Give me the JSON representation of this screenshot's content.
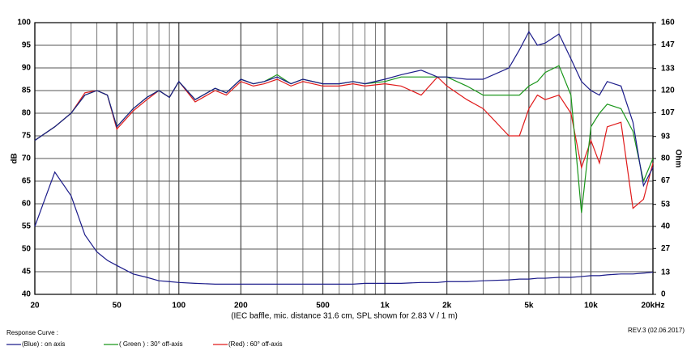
{
  "chart_data": {
    "type": "line",
    "ylabel": "dB",
    "y2label": "Ohm",
    "xlabel": "(IEC baffle, mic. distance 31.6 cm, SPL shown for 2.83 V / 1 m)",
    "revision": "REV.3 (02.06.2017)",
    "legend_title": "Response Curve :",
    "xscale": "log",
    "grid": true,
    "xlim": [
      20,
      20000
    ],
    "xticks": [
      20,
      50,
      100,
      200,
      500,
      {
        "value": 1000,
        "label": "1k"
      },
      {
        "value": 2000,
        "label": "2k"
      },
      {
        "value": 5000,
        "label": "5k"
      },
      {
        "value": 10000,
        "label": "10k"
      },
      {
        "value": 20000,
        "label": "20kHz"
      }
    ],
    "xgrid": [
      30,
      40,
      60,
      70,
      80,
      90,
      300,
      400,
      600,
      700,
      800,
      900,
      3000,
      4000,
      6000,
      7000,
      8000,
      9000
    ],
    "ylim": [
      40,
      100
    ],
    "yticks": [
      40,
      45,
      50,
      55,
      60,
      65,
      70,
      75,
      80,
      85,
      90,
      95,
      100
    ],
    "y2lim": [
      0,
      160
    ],
    "y2ticks": [
      0,
      13,
      27,
      40,
      53,
      67,
      80,
      93,
      107,
      120,
      133,
      147,
      160
    ],
    "x": [
      20,
      25,
      30,
      35,
      40,
      45,
      50,
      60,
      70,
      80,
      90,
      100,
      120,
      150,
      170,
      200,
      230,
      260,
      300,
      350,
      400,
      500,
      600,
      700,
      800,
      1000,
      1200,
      1500,
      1800,
      2000,
      2500,
      3000,
      4000,
      4500,
      5000,
      5500,
      6000,
      7000,
      8000,
      9000,
      10000,
      11000,
      12000,
      14000,
      16000,
      18000,
      20000
    ],
    "series": [
      {
        "name": "(Blue) : on axis",
        "color": "#1c1c8a",
        "values": [
          74,
          77,
          80,
          84,
          85,
          84,
          77,
          81,
          83.5,
          85,
          83.5,
          87,
          83,
          85.5,
          84.5,
          87.5,
          86.5,
          87,
          88,
          86.5,
          87.5,
          86.5,
          86.5,
          87,
          86.5,
          87.5,
          88.5,
          89.5,
          88,
          88,
          87.5,
          87.5,
          90,
          94,
          98,
          95,
          95.5,
          97.5,
          92,
          87,
          85,
          84,
          87,
          86,
          78,
          64,
          68
        ]
      },
      {
        "name": "( Green ) : 30° off-axis",
        "color": "#1a961a",
        "values": [
          74,
          77,
          80,
          84,
          85,
          84,
          77,
          81,
          83.5,
          85,
          83.5,
          87,
          83,
          85.5,
          84.5,
          87.5,
          86.5,
          87,
          88.5,
          86.5,
          87.5,
          86.5,
          86.5,
          87,
          86.5,
          87,
          88,
          88,
          88,
          88,
          86,
          84,
          84,
          84,
          86,
          87,
          89,
          90.5,
          84,
          58,
          77,
          80,
          82,
          81,
          76,
          65,
          70
        ]
      },
      {
        "name": "(Red) : 60° off-axis",
        "color": "#e01a1a",
        "values": [
          74,
          77,
          80,
          84.5,
          85,
          84,
          76.5,
          80.5,
          83,
          85,
          83.5,
          87,
          82.5,
          85,
          84,
          87,
          86,
          86.5,
          87.5,
          86,
          87,
          86,
          86,
          86.5,
          86,
          86.5,
          86,
          84,
          88,
          86,
          83,
          81,
          75,
          75,
          81,
          84,
          83,
          84,
          80,
          68,
          74,
          69,
          77,
          78,
          59,
          61,
          69
        ]
      },
      {
        "axis": "y2",
        "color": "#1c1c8a",
        "values": [
          40,
          72,
          58,
          35,
          25,
          20,
          17,
          12,
          10,
          8,
          7.5,
          7,
          6.5,
          6,
          6,
          6,
          6,
          6,
          6,
          6,
          6,
          6,
          6,
          6,
          6.5,
          6.5,
          6.5,
          7,
          7,
          7.5,
          7.5,
          8,
          8.5,
          9,
          9,
          9.5,
          9.5,
          10,
          10,
          10.5,
          11,
          11,
          11.5,
          12,
          12,
          12.5,
          13
        ]
      }
    ]
  }
}
